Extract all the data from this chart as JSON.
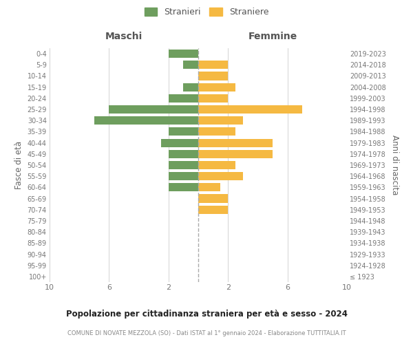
{
  "age_groups": [
    "100+",
    "95-99",
    "90-94",
    "85-89",
    "80-84",
    "75-79",
    "70-74",
    "65-69",
    "60-64",
    "55-59",
    "50-54",
    "45-49",
    "40-44",
    "35-39",
    "30-34",
    "25-29",
    "20-24",
    "15-19",
    "10-14",
    "5-9",
    "0-4"
  ],
  "birth_years": [
    "≤ 1923",
    "1924-1928",
    "1929-1933",
    "1934-1938",
    "1939-1943",
    "1944-1948",
    "1949-1953",
    "1954-1958",
    "1959-1963",
    "1964-1968",
    "1969-1973",
    "1974-1978",
    "1979-1983",
    "1984-1988",
    "1989-1993",
    "1994-1998",
    "1999-2003",
    "2004-2008",
    "2009-2013",
    "2014-2018",
    "2019-2023"
  ],
  "males": [
    0,
    0,
    0,
    0,
    0,
    0,
    0,
    0,
    2,
    2,
    2,
    2,
    2.5,
    2,
    7,
    6,
    2,
    1,
    0,
    1,
    2
  ],
  "females": [
    0,
    0,
    0,
    0,
    0,
    0,
    2,
    2,
    1.5,
    3,
    2.5,
    5,
    5,
    2.5,
    3,
    7,
    2,
    2.5,
    2,
    2,
    0
  ],
  "male_color": "#6e9e5e",
  "female_color": "#f5b942",
  "legend_male": "Stranieri",
  "legend_female": "Straniere",
  "title_main": "Popolazione per cittadinanza straniera per età e sesso - 2024",
  "title_sub": "COMUNE DI NOVATE MEZZOLA (SO) - Dati ISTAT al 1° gennaio 2024 - Elaborazione TUTTITALIA.IT",
  "xlabel_left": "Maschi",
  "xlabel_right": "Femmine",
  "ylabel_left": "Fasce di età",
  "ylabel_right": "Anni di nascita",
  "xlim": 10,
  "background_color": "#ffffff",
  "grid_color": "#cccccc",
  "tick_color": "#aaaaaa",
  "label_color": "#777777"
}
